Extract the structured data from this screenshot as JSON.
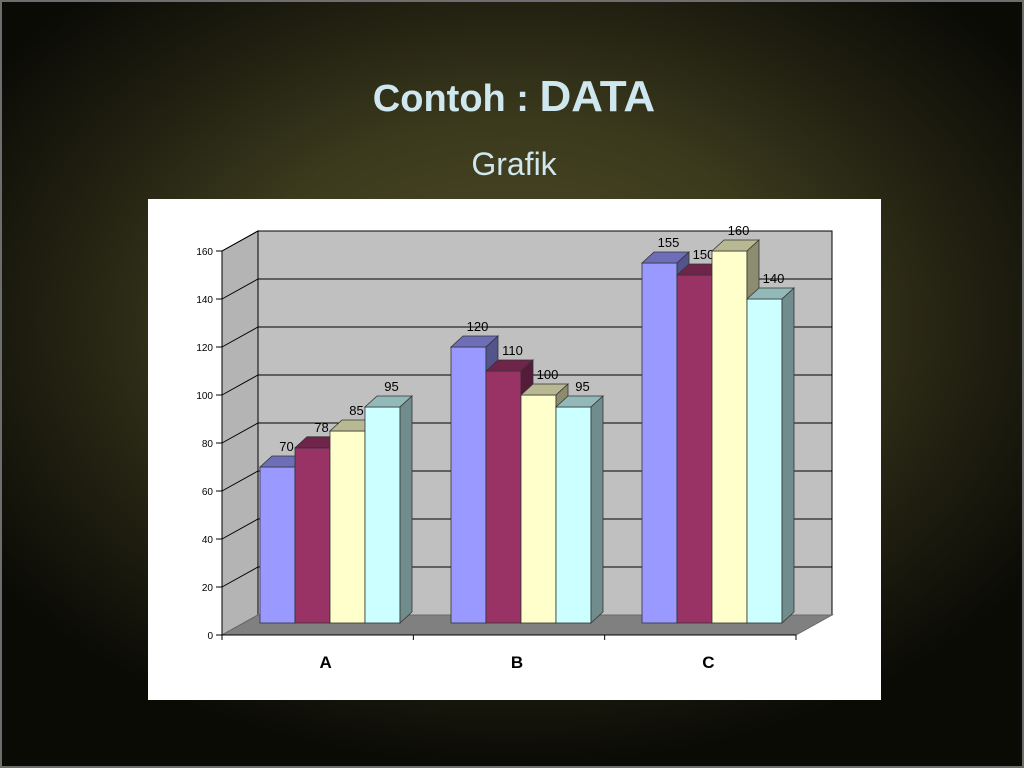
{
  "slide": {
    "title_part1": "Contoh : ",
    "title_part2": "DATA",
    "subtitle": "Grafik"
  },
  "chart_data": {
    "type": "bar",
    "categories": [
      "A",
      "B",
      "C"
    ],
    "series": [
      {
        "values": [
          70,
          120,
          155
        ],
        "color": "#9999ff"
      },
      {
        "values": [
          78,
          110,
          150
        ],
        "color": "#993366"
      },
      {
        "values": [
          85,
          100,
          160
        ],
        "color": "#ffffcc"
      },
      {
        "values": [
          95,
          95,
          140
        ],
        "color": "#ccffff"
      }
    ],
    "yticks": [
      0,
      20,
      40,
      60,
      80,
      100,
      120,
      140,
      160
    ],
    "ylim": [
      0,
      160
    ],
    "grid": true,
    "legend": "none",
    "style": "3d-clustered-column",
    "colors": {
      "wall": "#c0c0c0",
      "floor": "#808080",
      "grid": "#000000",
      "panel": "#ffffff"
    }
  }
}
